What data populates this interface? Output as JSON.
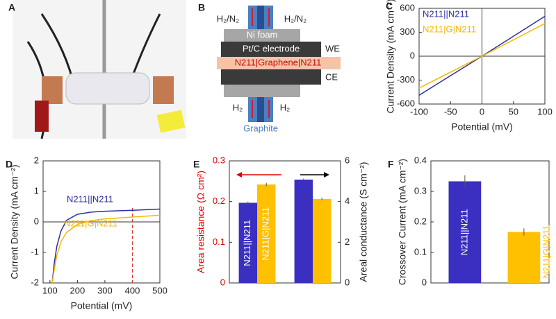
{
  "panel_labels": [
    "A",
    "B",
    "C",
    "D",
    "E",
    "F"
  ],
  "diagram": {
    "inlet_left": "H₂/N₂",
    "inlet_right": "H₂/N₂",
    "ni_foam": "Ni foam",
    "electrode": "Pt/C electrode",
    "we": "WE",
    "membrane": "N211|Graphene|N211",
    "ce": "CE",
    "outlet_left": "H₂",
    "outlet_right": "H₂",
    "graphite": "Graphite"
  },
  "chart_data": [
    {
      "type": "line",
      "xlabel": "Potential (mV)",
      "ylabel": "Current Density (mA cm⁻²)",
      "x": [
        -100,
        0,
        100
      ],
      "xlim": [
        -100,
        100
      ],
      "xticks": [
        -100,
        -50,
        0,
        50,
        100
      ],
      "ylim": [
        -600,
        600
      ],
      "yticks": [
        -600,
        -300,
        0,
        300,
        600
      ],
      "series": [
        {
          "name": "N211||N211",
          "color": "#2e2ea0",
          "values": [
            -490,
            0,
            500
          ]
        },
        {
          "name": "N211|G|N211",
          "color": "#f5b800",
          "values": [
            -400,
            0,
            410
          ]
        }
      ]
    },
    {
      "type": "line",
      "xlabel": "Potential (mV)",
      "ylabel": "Current Density (mA cm⁻²)",
      "x": [
        108,
        115,
        125,
        140,
        160,
        200,
        250,
        300,
        400,
        500
      ],
      "xlim": [
        75,
        500
      ],
      "xticks": [
        100,
        200,
        300,
        400,
        500
      ],
      "ylim": [
        -2,
        2
      ],
      "yticks": [
        -2,
        -1,
        0,
        1,
        2
      ],
      "vline": 400,
      "vline_color": "#e03030",
      "series": [
        {
          "name": "N211||N211",
          "color": "#2e2ea0",
          "values": [
            -2,
            -1.4,
            -0.8,
            -0.3,
            0.05,
            0.25,
            0.32,
            0.35,
            0.38,
            0.42
          ]
        },
        {
          "name": "N211|G|N211",
          "color": "#f5b800",
          "values": [
            -2,
            -1.6,
            -1.1,
            -0.65,
            -0.35,
            -0.08,
            0.04,
            0.1,
            0.16,
            0.22
          ]
        }
      ]
    },
    {
      "type": "bar",
      "ylabel": "Area resistance (Ω cm²)",
      "ylabel_color": "#e00000",
      "y2label": "Areal conductance (S cm⁻²)",
      "ylim": [
        0,
        0.3
      ],
      "yticks": [
        0,
        0.1,
        0.2,
        0.3
      ],
      "y2lim": [
        0,
        6
      ],
      "y2ticks": [
        0,
        2,
        4,
        6
      ],
      "group_axes": [
        "y",
        "y2"
      ],
      "series": [
        {
          "name": "N211||N211",
          "color": "#3a2fc0",
          "values": [
            0.197,
            5.08
          ],
          "errors": [
            0.003,
            0.05
          ]
        },
        {
          "name": "N211|G|N211",
          "color": "#ffc000",
          "values": [
            0.242,
            4.13
          ],
          "errors": [
            0.004,
            0.07
          ]
        }
      ]
    },
    {
      "type": "bar",
      "ylabel": "Crossover Current (mA cm⁻²)",
      "categories": [
        "N211||N211",
        "N211|G|N211"
      ],
      "colors": [
        "#3a2fc0",
        "#ffc000"
      ],
      "values": [
        0.333,
        0.167
      ],
      "errors": [
        0.02,
        0.012
      ],
      "ylim": [
        0,
        0.4
      ],
      "yticks": [
        0,
        0.1,
        0.2,
        0.3,
        0.4
      ]
    }
  ]
}
